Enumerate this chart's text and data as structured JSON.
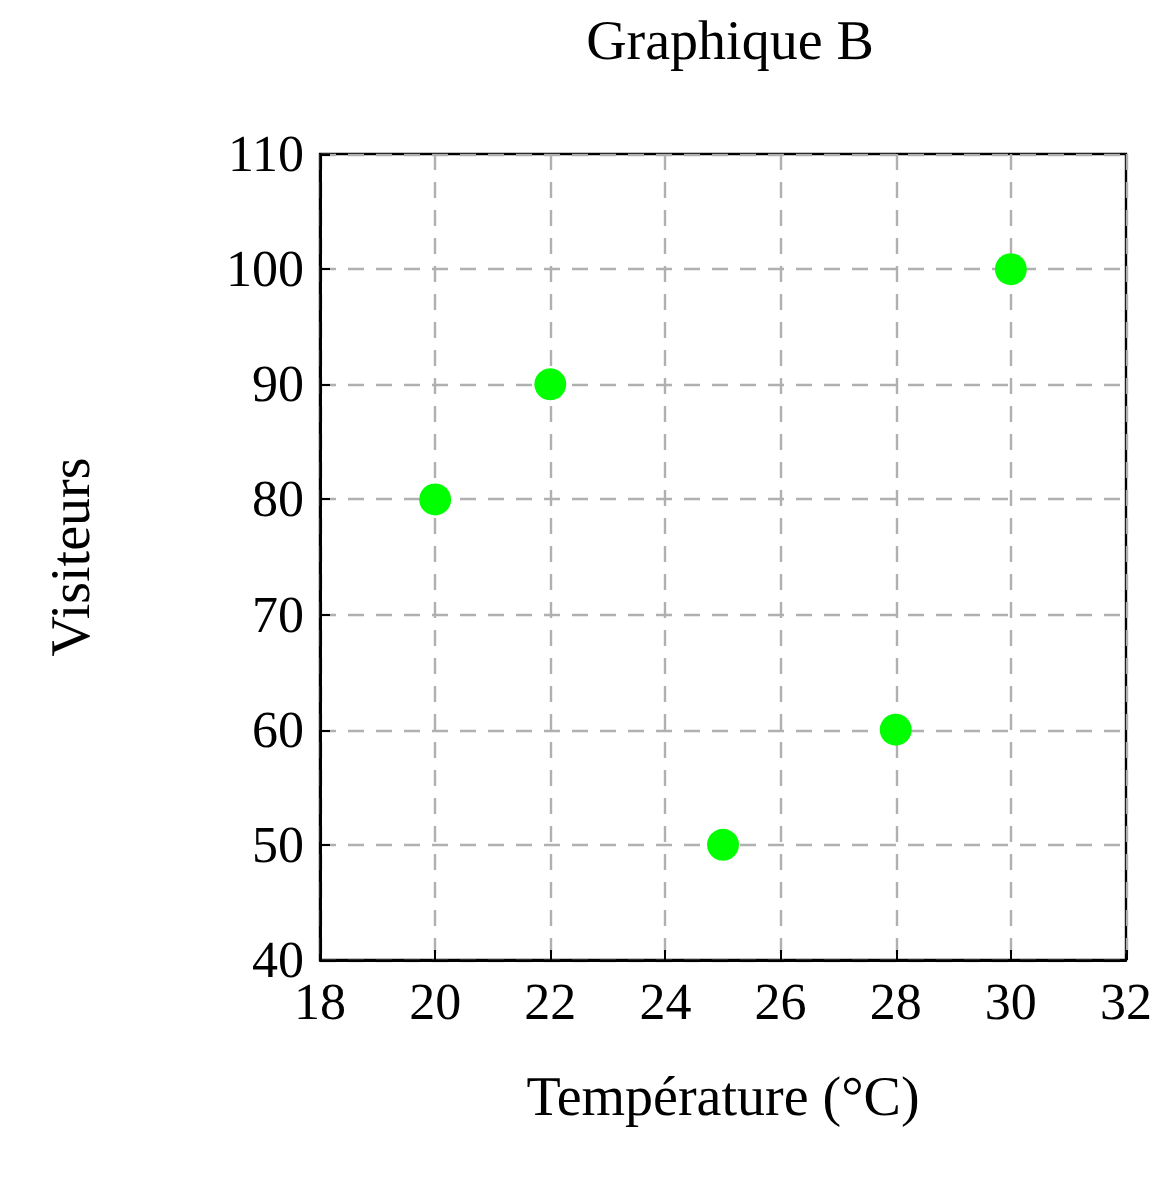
{
  "chart_data": {
    "type": "scatter",
    "title": "Graphique B",
    "xlabel": "Température (°C)",
    "ylabel": "Visiteurs",
    "x": [
      20,
      22,
      25,
      28,
      30
    ],
    "values": [
      80,
      90,
      50,
      60,
      100
    ],
    "color": "#00ff00",
    "xlim": [
      18,
      32
    ],
    "xticks": [
      18,
      20,
      22,
      24,
      26,
      28,
      30,
      32
    ],
    "ylim": [
      40,
      110
    ],
    "yticks": [
      40,
      50,
      60,
      70,
      80,
      90,
      100,
      110
    ],
    "grid": true,
    "marker": "circle"
  }
}
